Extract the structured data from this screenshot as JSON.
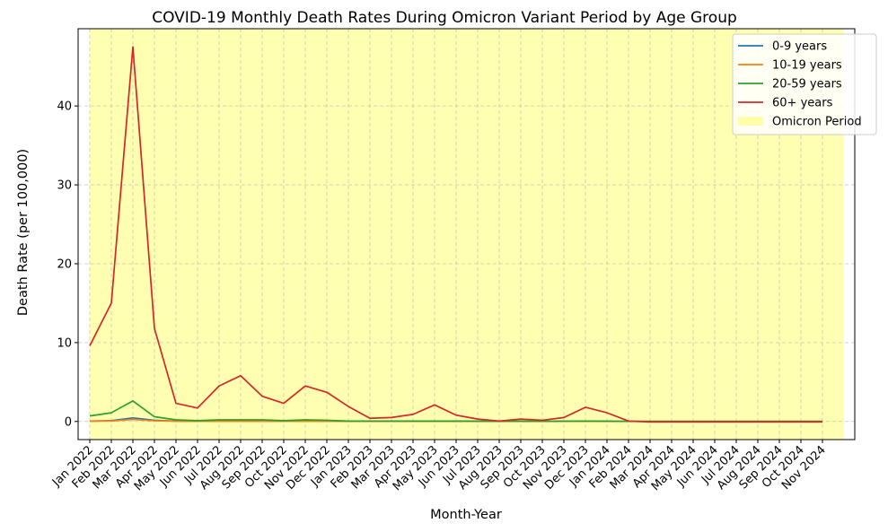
{
  "chart_data": {
    "type": "line",
    "title": "COVID-19 Monthly Death Rates During Omicron Variant Period by Age Group",
    "xlabel": "Month-Year",
    "ylabel": "Death Rate (per 100,000)",
    "ylim": [
      -2.3,
      49.8
    ],
    "yticks": [
      0,
      10,
      20,
      30,
      40
    ],
    "grid": true,
    "legend_position": "top-right",
    "categories": [
      "Jan 2022",
      "Feb 2022",
      "Mar 2022",
      "Apr 2022",
      "May 2022",
      "Jun 2022",
      "Jul 2022",
      "Aug 2022",
      "Sep 2022",
      "Oct 2022",
      "Nov 2022",
      "Dec 2022",
      "Jan 2023",
      "Feb 2023",
      "Mar 2023",
      "Apr 2023",
      "May 2023",
      "Jun 2023",
      "Jul 2023",
      "Aug 2023",
      "Sep 2023",
      "Oct 2023",
      "Nov 2023",
      "Dec 2023",
      "Jan 2024",
      "Feb 2024",
      "Mar 2024",
      "Apr 2024",
      "May 2024",
      "Jun 2024",
      "Jul 2024",
      "Aug 2024",
      "Sep 2024",
      "Oct 2024",
      "Nov 2024"
    ],
    "shaded_region": {
      "name": "Omicron Period",
      "x_from": "Jan 2022",
      "x_to": "Nov 2024",
      "pad_right_months": 1,
      "color": "#ffff00",
      "opacity": 0.3
    },
    "series": [
      {
        "name": "0-9 years",
        "color": "#1f77b4",
        "values": [
          0.05,
          0.1,
          0.45,
          0.15,
          0.05,
          0.05,
          0.05,
          0.05,
          0.05,
          0.05,
          0.05,
          0.05,
          0.02,
          0.02,
          0.02,
          0.02,
          0.02,
          0.02,
          0.02,
          0.02,
          0.02,
          0.02,
          0.02,
          0.02,
          0.02,
          0.01,
          0.01,
          0.01,
          0.01,
          0.01,
          0.01,
          0.01,
          0.01,
          0.01,
          0.01
        ]
      },
      {
        "name": "10-19 years",
        "color": "#ff7f0e",
        "values": [
          0.03,
          0.06,
          0.25,
          0.08,
          0.03,
          0.03,
          0.03,
          0.03,
          0.03,
          0.03,
          0.03,
          0.03,
          0.01,
          0.01,
          0.01,
          0.01,
          0.01,
          0.01,
          0.01,
          0.01,
          0.01,
          0.01,
          0.01,
          0.01,
          0.01,
          0.01,
          0.01,
          0.01,
          0.01,
          0.01,
          0.01,
          0.01,
          0.01,
          0.01,
          0.01
        ]
      },
      {
        "name": "20-59 years",
        "color": "#2ca02c",
        "values": [
          0.7,
          1.1,
          2.6,
          0.6,
          0.2,
          0.1,
          0.2,
          0.2,
          0.2,
          0.1,
          0.2,
          0.15,
          0.05,
          0.05,
          0.05,
          0.05,
          0.05,
          0.05,
          0.03,
          0.02,
          0.03,
          0.02,
          0.03,
          0.05,
          0.03,
          0.01,
          0.01,
          0.01,
          0.01,
          0.01,
          0.01,
          0.01,
          0.01,
          0.01,
          0.01
        ]
      },
      {
        "name": "60+ years",
        "color": "#d62728",
        "values": [
          9.6,
          15.0,
          47.5,
          11.8,
          2.3,
          1.7,
          4.5,
          5.8,
          3.2,
          2.3,
          4.5,
          3.7,
          1.9,
          0.4,
          0.5,
          0.9,
          2.1,
          0.8,
          0.3,
          0.05,
          0.3,
          0.15,
          0.5,
          1.8,
          1.1,
          0.05,
          -0.05,
          -0.05,
          -0.05,
          -0.05,
          -0.05,
          -0.05,
          -0.05,
          -0.05,
          -0.05
        ]
      }
    ]
  }
}
